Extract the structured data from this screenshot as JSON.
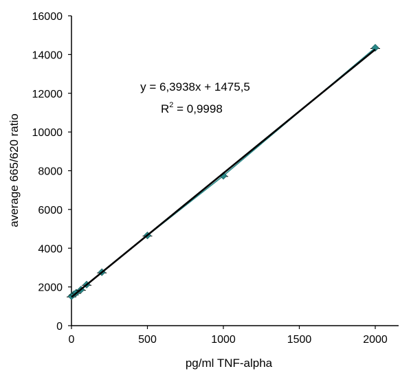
{
  "chart_data": {
    "type": "scatter",
    "title": "",
    "xlabel": "pg/ml TNF-alpha",
    "ylabel": "average 665/620 ratio",
    "xlim": [
      0,
      2000
    ],
    "ylim": [
      0,
      16000
    ],
    "x_ticks": [
      "0",
      "500",
      "1000",
      "1500",
      "2000"
    ],
    "y_ticks": [
      "0",
      "2000",
      "4000",
      "6000",
      "8000",
      "10000",
      "12000",
      "14000",
      "16000"
    ],
    "grid": false,
    "legend": "none",
    "series": [
      {
        "marker": "diamond",
        "connected": true,
        "color": "#2a8a8a",
        "x": [
          0,
          15.6,
          31.25,
          62.5,
          100,
          200,
          500,
          1000,
          2000
        ],
        "y": [
          1520,
          1620,
          1700,
          1860,
          2120,
          2760,
          4660,
          7740,
          14350
        ]
      }
    ],
    "trendline": {
      "type": "linear",
      "slope": 6.3938,
      "intercept": 1475.5,
      "color": "#000000",
      "equation_text": "y = 6,3938x + 1475,5",
      "r2_prefix": "R",
      "r2_sup": "2",
      "r2_value": " = 0,9998"
    }
  }
}
